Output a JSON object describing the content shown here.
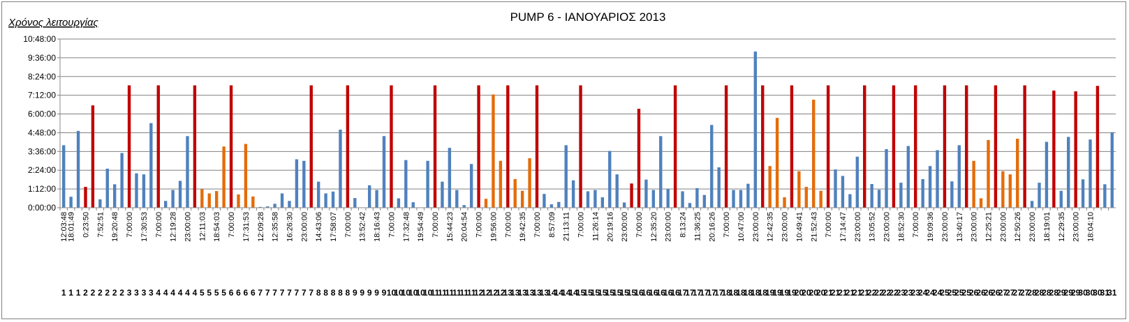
{
  "chart_data": {
    "type": "bar",
    "title": "PUMP 6 - ΙΑΝΟΥΑΡΙΟΣ 2013",
    "ylabel": "Χρόνος λειτουργίας",
    "ylim_minutes": [
      0,
      648
    ],
    "y_ticks": [
      "0:00:00",
      "1:12:00",
      "2:24:00",
      "3:36:00",
      "4:48:00",
      "6:00:00",
      "7:12:00",
      "8:24:00",
      "9:36:00",
      "10:48:00"
    ],
    "grid": "horizontal",
    "legend": "none",
    "colors": {
      "blue": "#4f81bd",
      "red": "#c00000",
      "orange": "#e46c0a"
    },
    "bars": [
      {
        "label": "12:03:48",
        "day": "1",
        "value": 240,
        "color": "blue"
      },
      {
        "label": "18:01:49",
        "day": "1",
        "value": 42,
        "color": "blue"
      },
      {
        "label": "",
        "day": "1",
        "value": 295,
        "color": "blue"
      },
      {
        "label": "0:23:50",
        "day": "2",
        "value": 80,
        "color": "red"
      },
      {
        "label": "",
        "day": "2",
        "value": 393,
        "color": "red"
      },
      {
        "label": "7:52:51",
        "day": "2",
        "value": 32,
        "color": "blue"
      },
      {
        "label": "",
        "day": "2",
        "value": 150,
        "color": "blue"
      },
      {
        "label": "19:20:48",
        "day": "2",
        "value": 90,
        "color": "blue"
      },
      {
        "label": "",
        "day": "2",
        "value": 210,
        "color": "blue"
      },
      {
        "label": "7:00:00",
        "day": "3",
        "value": 470,
        "color": "red"
      },
      {
        "label": "",
        "day": "3",
        "value": 132,
        "color": "blue"
      },
      {
        "label": "17:30:53",
        "day": "3",
        "value": 128,
        "color": "blue"
      },
      {
        "label": "",
        "day": "3",
        "value": 325,
        "color": "blue"
      },
      {
        "label": "7:00:00",
        "day": "4",
        "value": 470,
        "color": "red"
      },
      {
        "label": "",
        "day": "4",
        "value": 26,
        "color": "blue"
      },
      {
        "label": "12:19:28",
        "day": "4",
        "value": 68,
        "color": "blue"
      },
      {
        "label": "",
        "day": "4",
        "value": 103,
        "color": "blue"
      },
      {
        "label": "23:00:00",
        "day": "4",
        "value": 275,
        "color": "blue"
      },
      {
        "label": "",
        "day": "4",
        "value": 470,
        "color": "red"
      },
      {
        "label": "12:11:03",
        "day": "5",
        "value": 71,
        "color": "orange"
      },
      {
        "label": "",
        "day": "5",
        "value": 55,
        "color": "orange"
      },
      {
        "label": "18:54:03",
        "day": "5",
        "value": 64,
        "color": "orange"
      },
      {
        "label": "",
        "day": "5",
        "value": 235,
        "color": "orange"
      },
      {
        "label": "7:00:00",
        "day": "6",
        "value": 470,
        "color": "red"
      },
      {
        "label": "",
        "day": "6",
        "value": 51,
        "color": "orange"
      },
      {
        "label": "17:31:53",
        "day": "6",
        "value": 245,
        "color": "orange"
      },
      {
        "label": "",
        "day": "6",
        "value": 43,
        "color": "orange"
      },
      {
        "label": "12:09:28",
        "day": "7",
        "value": 3,
        "color": "blue"
      },
      {
        "label": "",
        "day": "7",
        "value": 5,
        "color": "blue"
      },
      {
        "label": "12:35:58",
        "day": "7",
        "value": 15,
        "color": "blue"
      },
      {
        "label": "",
        "day": "7",
        "value": 55,
        "color": "blue"
      },
      {
        "label": "16:26:30",
        "day": "7",
        "value": 26,
        "color": "blue"
      },
      {
        "label": "",
        "day": "7",
        "value": 186,
        "color": "blue"
      },
      {
        "label": "23:00:00",
        "day": "7",
        "value": 180,
        "color": "blue"
      },
      {
        "label": "",
        "day": "7",
        "value": 470,
        "color": "red"
      },
      {
        "label": "14:43:06",
        "day": "8",
        "value": 100,
        "color": "blue"
      },
      {
        "label": "",
        "day": "8",
        "value": 55,
        "color": "blue"
      },
      {
        "label": "17:58:07",
        "day": "8",
        "value": 62,
        "color": "blue"
      },
      {
        "label": "",
        "day": "8",
        "value": 300,
        "color": "blue"
      },
      {
        "label": "7:00:00",
        "day": "8",
        "value": 470,
        "color": "red"
      },
      {
        "label": "",
        "day": "9",
        "value": 37,
        "color": "blue"
      },
      {
        "label": "13:52:42",
        "day": "9",
        "value": 0,
        "color": "blue"
      },
      {
        "label": "",
        "day": "9",
        "value": 86,
        "color": "blue"
      },
      {
        "label": "18:16:43",
        "day": "9",
        "value": 68,
        "color": "blue"
      },
      {
        "label": "",
        "day": "9",
        "value": 275,
        "color": "blue"
      },
      {
        "label": "7:00:00",
        "day": "10",
        "value": 470,
        "color": "red"
      },
      {
        "label": "",
        "day": "10",
        "value": 36,
        "color": "blue"
      },
      {
        "label": "17:32:48",
        "day": "10",
        "value": 183,
        "color": "blue"
      },
      {
        "label": "",
        "day": "10",
        "value": 21,
        "color": "blue"
      },
      {
        "label": "19:54:49",
        "day": "10",
        "value": 0,
        "color": "blue"
      },
      {
        "label": "",
        "day": "10",
        "value": 180,
        "color": "blue"
      },
      {
        "label": "7:00:00",
        "day": "11",
        "value": 470,
        "color": "red"
      },
      {
        "label": "",
        "day": "11",
        "value": 100,
        "color": "blue"
      },
      {
        "label": "15:44:23",
        "day": "11",
        "value": 230,
        "color": "blue"
      },
      {
        "label": "",
        "day": "11",
        "value": 68,
        "color": "blue"
      },
      {
        "label": "20:04:54",
        "day": "11",
        "value": 10,
        "color": "blue"
      },
      {
        "label": "",
        "day": "11",
        "value": 168,
        "color": "blue"
      },
      {
        "label": "7:00:00",
        "day": "12",
        "value": 470,
        "color": "red"
      },
      {
        "label": "",
        "day": "12",
        "value": 34,
        "color": "orange"
      },
      {
        "label": "19:56:00",
        "day": "12",
        "value": 435,
        "color": "orange"
      },
      {
        "label": "",
        "day": "12",
        "value": 180,
        "color": "orange"
      },
      {
        "label": "7:00:00",
        "day": "13",
        "value": 470,
        "color": "red"
      },
      {
        "label": "",
        "day": "13",
        "value": 110,
        "color": "orange"
      },
      {
        "label": "19:42:35",
        "day": "13",
        "value": 65,
        "color": "orange"
      },
      {
        "label": "",
        "day": "13",
        "value": 190,
        "color": "orange"
      },
      {
        "label": "7:00:00",
        "day": "13",
        "value": 470,
        "color": "red"
      },
      {
        "label": "",
        "day": "13",
        "value": 53,
        "color": "blue"
      },
      {
        "label": "8:57:09",
        "day": "14",
        "value": 13,
        "color": "blue"
      },
      {
        "label": "",
        "day": "14",
        "value": 22,
        "color": "blue"
      },
      {
        "label": "21:13:11",
        "day": "14",
        "value": 240,
        "color": "blue"
      },
      {
        "label": "",
        "day": "14",
        "value": 105,
        "color": "blue"
      },
      {
        "label": "7:00:00",
        "day": "15",
        "value": 470,
        "color": "red"
      },
      {
        "label": "",
        "day": "15",
        "value": 63,
        "color": "blue"
      },
      {
        "label": "11:26:14",
        "day": "15",
        "value": 68,
        "color": "blue"
      },
      {
        "label": "",
        "day": "15",
        "value": 40,
        "color": "blue"
      },
      {
        "label": "20:19:16",
        "day": "15",
        "value": 218,
        "color": "blue"
      },
      {
        "label": "",
        "day": "15",
        "value": 128,
        "color": "blue"
      },
      {
        "label": "23:00:00",
        "day": "15",
        "value": 20,
        "color": "blue"
      },
      {
        "label": "",
        "day": "15",
        "value": 93,
        "color": "red"
      },
      {
        "label": "7:00:00",
        "day": "16",
        "value": 380,
        "color": "red"
      },
      {
        "label": "",
        "day": "16",
        "value": 108,
        "color": "blue"
      },
      {
        "label": "12:35:20",
        "day": "16",
        "value": 68,
        "color": "blue"
      },
      {
        "label": "",
        "day": "16",
        "value": 275,
        "color": "blue"
      },
      {
        "label": "23:00:00",
        "day": "16",
        "value": 72,
        "color": "blue"
      },
      {
        "label": "",
        "day": "16",
        "value": 470,
        "color": "red"
      },
      {
        "label": "8:13:24",
        "day": "17",
        "value": 63,
        "color": "blue"
      },
      {
        "label": "",
        "day": "17",
        "value": 18,
        "color": "blue"
      },
      {
        "label": "11:36:25",
        "day": "17",
        "value": 75,
        "color": "blue"
      },
      {
        "label": "",
        "day": "17",
        "value": 49,
        "color": "blue"
      },
      {
        "label": "20:16:26",
        "day": "17",
        "value": 318,
        "color": "blue"
      },
      {
        "label": "",
        "day": "17",
        "value": 155,
        "color": "blue"
      },
      {
        "label": "7:00:00",
        "day": "18",
        "value": 470,
        "color": "red"
      },
      {
        "label": "",
        "day": "18",
        "value": 68,
        "color": "blue"
      },
      {
        "label": "10:47:00",
        "day": "18",
        "value": 68,
        "color": "blue"
      },
      {
        "label": "",
        "day": "18",
        "value": 92,
        "color": "blue"
      },
      {
        "label": "23:00:00",
        "day": "18",
        "value": 600,
        "color": "blue"
      },
      {
        "label": "",
        "day": "18",
        "value": 470,
        "color": "red"
      },
      {
        "label": "12:42:35",
        "day": "19",
        "value": 160,
        "color": "orange"
      },
      {
        "label": "",
        "day": "19",
        "value": 345,
        "color": "orange"
      },
      {
        "label": "23:00:00",
        "day": "19",
        "value": 40,
        "color": "orange"
      },
      {
        "label": "",
        "day": "19",
        "value": 470,
        "color": "red"
      },
      {
        "label": "10:49:41",
        "day": "20",
        "value": 140,
        "color": "orange"
      },
      {
        "label": "",
        "day": "20",
        "value": 80,
        "color": "orange"
      },
      {
        "label": "21:52:43",
        "day": "20",
        "value": 415,
        "color": "orange"
      },
      {
        "label": "",
        "day": "20",
        "value": 65,
        "color": "orange"
      },
      {
        "label": "7:00:00",
        "day": "21",
        "value": 470,
        "color": "red"
      },
      {
        "label": "",
        "day": "21",
        "value": 147,
        "color": "blue"
      },
      {
        "label": "17:14:47",
        "day": "21",
        "value": 122,
        "color": "blue"
      },
      {
        "label": "",
        "day": "21",
        "value": 52,
        "color": "blue"
      },
      {
        "label": "23:00:00",
        "day": "21",
        "value": 196,
        "color": "blue"
      },
      {
        "label": "",
        "day": "21",
        "value": 470,
        "color": "red"
      },
      {
        "label": "13:05:52",
        "day": "22",
        "value": 91,
        "color": "blue"
      },
      {
        "label": "",
        "day": "22",
        "value": 69,
        "color": "blue"
      },
      {
        "label": "23:00:00",
        "day": "22",
        "value": 225,
        "color": "blue"
      },
      {
        "label": "",
        "day": "22",
        "value": 470,
        "color": "red"
      },
      {
        "label": "18:52:30",
        "day": "23",
        "value": 96,
        "color": "blue"
      },
      {
        "label": "",
        "day": "23",
        "value": 237,
        "color": "blue"
      },
      {
        "label": "7:00:00",
        "day": "23",
        "value": 470,
        "color": "red"
      },
      {
        "label": "",
        "day": "24",
        "value": 110,
        "color": "blue"
      },
      {
        "label": "19:09:36",
        "day": "24",
        "value": 160,
        "color": "blue"
      },
      {
        "label": "",
        "day": "24",
        "value": 221,
        "color": "blue"
      },
      {
        "label": "23:00:00",
        "day": "25",
        "value": 470,
        "color": "red"
      },
      {
        "label": "",
        "day": "25",
        "value": 101,
        "color": "blue"
      },
      {
        "label": "13:40:17",
        "day": "25",
        "value": 240,
        "color": "blue"
      },
      {
        "label": "",
        "day": "25",
        "value": 470,
        "color": "red"
      },
      {
        "label": "23:00:00",
        "day": "26",
        "value": 180,
        "color": "orange"
      },
      {
        "label": "",
        "day": "26",
        "value": 36,
        "color": "orange"
      },
      {
        "label": "12:25:21",
        "day": "26",
        "value": 260,
        "color": "orange"
      },
      {
        "label": "",
        "day": "26",
        "value": 470,
        "color": "red"
      },
      {
        "label": "23:00:00",
        "day": "27",
        "value": 140,
        "color": "orange"
      },
      {
        "label": "",
        "day": "27",
        "value": 128,
        "color": "orange"
      },
      {
        "label": "12:50:26",
        "day": "27",
        "value": 265,
        "color": "orange"
      },
      {
        "label": "",
        "day": "27",
        "value": 470,
        "color": "red"
      },
      {
        "label": "23:00:00",
        "day": "28",
        "value": 26,
        "color": "blue"
      },
      {
        "label": "",
        "day": "28",
        "value": 96,
        "color": "blue"
      },
      {
        "label": "18:19:01",
        "day": "28",
        "value": 253,
        "color": "blue"
      },
      {
        "label": "",
        "day": "28",
        "value": 450,
        "color": "red"
      },
      {
        "label": "12:29:35",
        "day": "29",
        "value": 65,
        "color": "blue"
      },
      {
        "label": "",
        "day": "29",
        "value": 272,
        "color": "blue"
      },
      {
        "label": "23:00:00",
        "day": "29",
        "value": 447,
        "color": "red"
      },
      {
        "label": "",
        "day": "30",
        "value": 109,
        "color": "blue"
      },
      {
        "label": "18:04:10",
        "day": "30",
        "value": 262,
        "color": "blue"
      },
      {
        "label": "",
        "day": "30",
        "value": 468,
        "color": "red"
      },
      {
        "label": "",
        "day": "31",
        "value": 90,
        "color": "blue"
      },
      {
        "label": "",
        "day": "31",
        "value": 290,
        "color": "blue"
      }
    ]
  }
}
